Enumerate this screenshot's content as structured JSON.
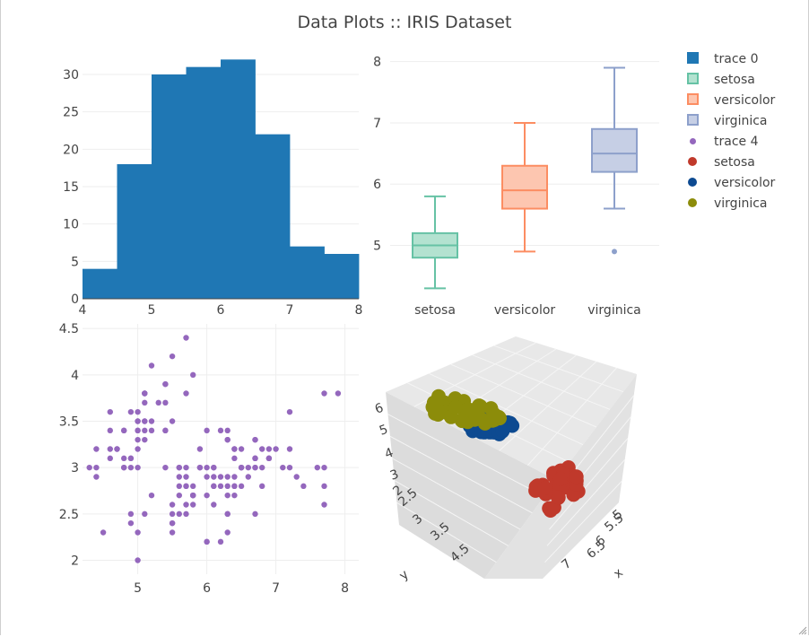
{
  "title": "Data Plots :: IRIS Dataset",
  "legend": [
    {
      "label": "trace 0",
      "kind": "box",
      "color": "#1f77b4",
      "fill": "#1f77b4"
    },
    {
      "label": "setosa",
      "kind": "box",
      "color": "#66c2a5",
      "fill": "#b3e2d0"
    },
    {
      "label": "versicolor",
      "kind": "box",
      "color": "#fc8d62",
      "fill": "#fdc6b0"
    },
    {
      "label": "virginica",
      "kind": "box",
      "color": "#8da0cb",
      "fill": "#c6cfe5"
    },
    {
      "label": "trace 4",
      "kind": "dot-small",
      "color": "#9467bd"
    },
    {
      "label": "setosa",
      "kind": "dot",
      "color": "#c0392b"
    },
    {
      "label": "versicolor",
      "kind": "dot",
      "color": "#0d4a91"
    },
    {
      "label": "virginica",
      "kind": "dot",
      "color": "#8c8c0a"
    }
  ],
  "chart_data": [
    {
      "type": "bar",
      "name": "histogram",
      "bins": [
        [
          4,
          4.5
        ],
        [
          4.5,
          5
        ],
        [
          5,
          5.5
        ],
        [
          5.5,
          6
        ],
        [
          6,
          6.5
        ],
        [
          6.5,
          7
        ],
        [
          7,
          7.5
        ],
        [
          7.5,
          8
        ]
      ],
      "values": [
        4,
        18,
        30,
        31,
        32,
        22,
        7,
        6
      ],
      "xlim": [
        4,
        8
      ],
      "ylim": [
        0,
        33
      ],
      "xticks": [
        "4",
        "5",
        "6",
        "7",
        "8"
      ],
      "yticks": [
        "0",
        "5",
        "10",
        "15",
        "20",
        "25",
        "30"
      ],
      "color": "#1f77b4"
    },
    {
      "type": "box",
      "name": "box plot",
      "categories": [
        "setosa",
        "versicolor",
        "virginica"
      ],
      "series": [
        {
          "name": "setosa",
          "min": 4.3,
          "q1": 4.8,
          "median": 5.0,
          "q3": 5.2,
          "max": 5.8,
          "outliers": [],
          "color": "#66c2a5",
          "fill": "#b3e2d0"
        },
        {
          "name": "versicolor",
          "min": 4.9,
          "q1": 5.6,
          "median": 5.9,
          "q3": 6.3,
          "max": 7.0,
          "outliers": [],
          "color": "#fc8d62",
          "fill": "#fdc6b0"
        },
        {
          "name": "virginica",
          "min": 5.6,
          "q1": 6.2,
          "median": 6.5,
          "q3": 6.9,
          "max": 7.9,
          "outliers": [
            4.9
          ],
          "color": "#8da0cb",
          "fill": "#c6cfe5"
        }
      ],
      "ylim": [
        4.1,
        8.2
      ],
      "yticks": [
        "5",
        "6",
        "7",
        "8"
      ]
    },
    {
      "type": "scatter",
      "name": "trace 4",
      "x": [
        5.1,
        4.9,
        4.7,
        4.6,
        5.0,
        5.4,
        4.6,
        5.0,
        4.4,
        4.9,
        5.4,
        4.8,
        4.8,
        4.3,
        5.8,
        5.7,
        5.4,
        5.1,
        5.7,
        5.1,
        5.4,
        5.1,
        4.6,
        5.1,
        4.8,
        5.0,
        5.0,
        5.2,
        5.2,
        4.7,
        4.8,
        5.4,
        5.2,
        5.5,
        4.9,
        5.0,
        5.5,
        4.9,
        4.4,
        5.1,
        5.0,
        4.5,
        4.4,
        5.0,
        5.1,
        4.8,
        5.1,
        4.6,
        5.3,
        5.0,
        7.0,
        6.4,
        6.9,
        5.5,
        6.5,
        5.7,
        6.3,
        4.9,
        6.6,
        5.2,
        5.0,
        5.9,
        6.0,
        6.1,
        5.6,
        6.7,
        5.6,
        5.8,
        6.2,
        5.6,
        5.9,
        6.1,
        6.3,
        6.1,
        6.4,
        6.6,
        6.8,
        6.7,
        6.0,
        5.7,
        5.5,
        5.5,
        5.8,
        6.0,
        5.4,
        6.0,
        6.7,
        6.3,
        5.6,
        5.5,
        5.5,
        6.1,
        5.8,
        5.0,
        5.6,
        5.7,
        5.7,
        6.2,
        5.1,
        5.7,
        6.3,
        5.8,
        7.1,
        6.3,
        6.5,
        7.6,
        4.9,
        7.3,
        6.7,
        7.2,
        6.5,
        6.4,
        6.8,
        5.7,
        5.8,
        6.4,
        6.5,
        7.7,
        7.7,
        6.0,
        6.9,
        5.6,
        7.7,
        6.3,
        6.7,
        7.2,
        6.2,
        6.1,
        6.4,
        7.2,
        7.4,
        7.9,
        6.4,
        6.3,
        6.1,
        7.7,
        6.3,
        6.4,
        6.0,
        6.9,
        6.7,
        6.9,
        5.8,
        6.8,
        6.7,
        6.7,
        6.3,
        6.5,
        6.2,
        5.9
      ],
      "y": [
        3.5,
        3.0,
        3.2,
        3.1,
        3.6,
        3.9,
        3.4,
        3.4,
        2.9,
        3.1,
        3.7,
        3.4,
        3.0,
        3.0,
        4.0,
        4.4,
        3.9,
        3.5,
        3.8,
        3.8,
        3.4,
        3.7,
        3.6,
        3.3,
        3.4,
        3.0,
        3.4,
        3.5,
        3.4,
        3.2,
        3.1,
        3.4,
        4.1,
        4.2,
        3.1,
        3.2,
        3.5,
        3.6,
        3.0,
        3.4,
        3.5,
        2.3,
        3.2,
        3.5,
        3.8,
        3.0,
        3.8,
        3.2,
        3.7,
        3.3,
        3.2,
        3.2,
        3.1,
        2.3,
        2.8,
        2.8,
        3.3,
        2.4,
        2.9,
        2.7,
        2.0,
        3.0,
        2.2,
        2.9,
        2.9,
        3.1,
        3.0,
        2.7,
        2.2,
        2.5,
        3.2,
        2.8,
        2.5,
        2.8,
        2.9,
        3.0,
        2.8,
        3.0,
        2.9,
        2.6,
        2.4,
        2.4,
        2.7,
        2.7,
        3.0,
        3.4,
        3.1,
        2.3,
        3.0,
        2.5,
        2.6,
        3.0,
        2.6,
        2.3,
        2.7,
        3.0,
        2.9,
        2.9,
        2.5,
        2.8,
        3.3,
        2.7,
        3.0,
        2.9,
        3.0,
        3.0,
        2.5,
        2.9,
        2.5,
        3.6,
        3.2,
        2.7,
        3.0,
        2.5,
        2.8,
        3.2,
        3.0,
        3.8,
        2.6,
        2.2,
        3.2,
        2.8,
        2.8,
        2.7,
        3.3,
        3.2,
        2.8,
        3.0,
        2.8,
        3.0,
        2.8,
        3.8,
        2.8,
        2.8,
        2.6,
        3.0,
        3.4,
        3.1,
        3.0,
        3.1,
        3.1,
        3.1,
        2.7,
        3.2,
        3.3,
        3.0,
        2.5,
        3.0,
        3.4,
        3.0
      ],
      "xlim": [
        4.2,
        8.2
      ],
      "ylim": [
        1.85,
        4.55
      ],
      "xticks": [
        "5",
        "6",
        "7",
        "8"
      ],
      "yticks": [
        "2",
        "2.5",
        "3",
        "3.5",
        "4",
        "4.5"
      ],
      "color": "#9467bd"
    },
    {
      "type": "scatter",
      "name": "3d scatter",
      "tick_labels": [
        "6",
        "5",
        "4",
        "3",
        "2",
        "2.5",
        "3",
        "3.5",
        "4.5",
        "5",
        "5.5",
        "6",
        "6.5",
        "7"
      ],
      "axis_labels": [
        "y",
        "x"
      ],
      "series": [
        {
          "name": "setosa",
          "color": "#c0392b"
        },
        {
          "name": "versicolor",
          "color": "#0d4a91"
        },
        {
          "name": "virginica",
          "color": "#8c8c0a"
        }
      ]
    }
  ]
}
